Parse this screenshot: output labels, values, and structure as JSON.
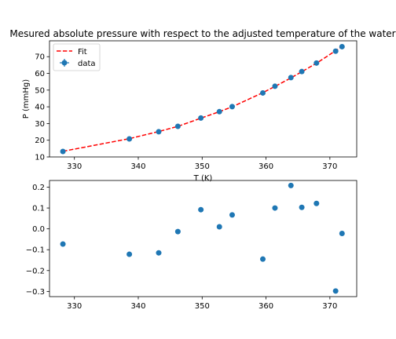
{
  "chart_data": [
    {
      "type": "scatter",
      "title": "Mesured absolute pressure with respect to the adjusted temperature of the water",
      "xlabel": "T (K)",
      "ylabel": "P (mmHg)",
      "xlim": [
        326.1,
        374.2
      ],
      "ylim": [
        10,
        79.5
      ],
      "xticks": [
        330,
        340,
        350,
        360,
        370
      ],
      "yticks": [
        10,
        20,
        30,
        40,
        50,
        60,
        70
      ],
      "grid": false,
      "legend_position": "top-left",
      "legend": [
        {
          "label": "Fit",
          "style": "dashed-line",
          "color": "#ff0000"
        },
        {
          "label": "data",
          "style": "marker-errorbar",
          "color": "#1f77b4"
        }
      ],
      "series": [
        {
          "name": "data",
          "color": "#1f77b4",
          "x": [
            328.2,
            338.6,
            343.2,
            346.2,
            349.8,
            352.7,
            354.7,
            359.5,
            361.4,
            363.9,
            365.6,
            367.9,
            370.9,
            371.9
          ],
          "y": [
            13.3,
            20.8,
            25.1,
            28.3,
            33.3,
            37.1,
            40.1,
            48.3,
            52.3,
            57.5,
            61.1,
            66.2,
            73.3,
            76.0
          ]
        },
        {
          "name": "Fit",
          "color": "#ff0000",
          "line": "dashed",
          "x": [
            328.2,
            338.6,
            343.2,
            346.2,
            349.8,
            352.7,
            354.7,
            359.5,
            361.4,
            363.9,
            365.6,
            367.9,
            370.9,
            371.9
          ],
          "y": [
            13.37,
            20.92,
            25.21,
            28.31,
            33.21,
            37.09,
            40.03,
            48.45,
            52.2,
            57.29,
            61.0,
            66.08,
            73.6,
            76.02
          ]
        }
      ]
    },
    {
      "type": "scatter",
      "title": "",
      "xlabel": "",
      "ylabel": "",
      "xlim": [
        326.1,
        374.2
      ],
      "ylim": [
        -0.325,
        0.232
      ],
      "xticks": [
        330,
        340,
        350,
        360,
        370
      ],
      "yticks": [
        -0.3,
        -0.2,
        -0.1,
        0.0,
        0.1,
        0.2
      ],
      "ytick_labels": [
        "−0.3",
        "−0.2",
        "−0.1",
        "0.0",
        "0.1",
        "0.2"
      ],
      "grid": false,
      "series": [
        {
          "name": "",
          "color": "#1f77b4",
          "x": [
            328.2,
            338.6,
            343.2,
            346.2,
            349.8,
            352.7,
            354.7,
            359.5,
            361.4,
            363.9,
            365.6,
            367.9,
            370.9,
            371.9
          ],
          "y": [
            -0.073,
            -0.122,
            -0.115,
            -0.013,
            0.092,
            0.01,
            0.067,
            -0.145,
            0.1,
            0.208,
            0.103,
            0.122,
            -0.298,
            -0.022
          ]
        }
      ]
    }
  ]
}
